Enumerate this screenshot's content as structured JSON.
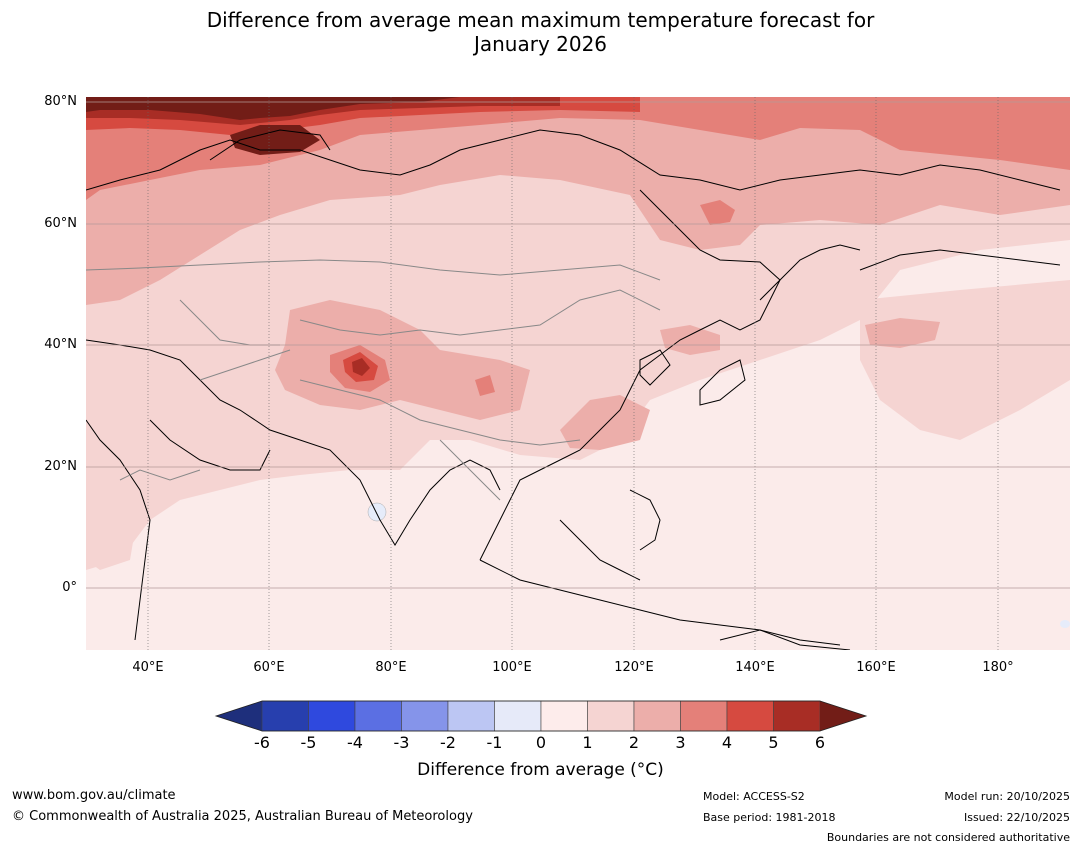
{
  "title": {
    "line1": "Difference from average mean maximum temperature forecast for",
    "line2": "January 2026"
  },
  "map": {
    "region": "Asia",
    "lat_ticks": [
      "80°N",
      "60°N",
      "40°N",
      "20°N",
      "0°"
    ],
    "lon_ticks": [
      "40°E",
      "60°E",
      "80°E",
      "100°E",
      "120°E",
      "140°E",
      "160°E",
      "180°"
    ],
    "colors": {
      "ocean_base": "#fbebea",
      "level_1_2": "#f5d4d2",
      "level_2_3": "#ecaeaa",
      "level_3_4": "#e48079",
      "level_4_5": "#d64a40",
      "level_5_6": "#a82d25",
      "level_6_plus": "#721d17",
      "cool_spot": "#e6ecfa"
    }
  },
  "colorbar": {
    "ticks": [
      "-6",
      "-5",
      "-4",
      "-3",
      "-2",
      "-1",
      "0",
      "1",
      "2",
      "3",
      "4",
      "5",
      "6"
    ],
    "colors": [
      "#1e2f7c",
      "#273fae",
      "#2f49de",
      "#5b6fe3",
      "#8594ea",
      "#bcc6f3",
      "#e6eaf9",
      "#fdeceb",
      "#f5d4d2",
      "#ecaeaa",
      "#e48079",
      "#d64a40",
      "#a82d25",
      "#721d17"
    ],
    "label": "Difference from average (°C)"
  },
  "footer": {
    "website": "www.bom.gov.au/climate",
    "copyright": "© Commonwealth of Australia 2025, Australian Bureau of Meteorology",
    "model": "Model: ACCESS-S2",
    "base_period": "Base period: 1981-2018",
    "model_run": "Model run: 20/10/2025",
    "issued": "Issued: 22/10/2025",
    "disclaimer": "Boundaries are not considered authoritative"
  }
}
